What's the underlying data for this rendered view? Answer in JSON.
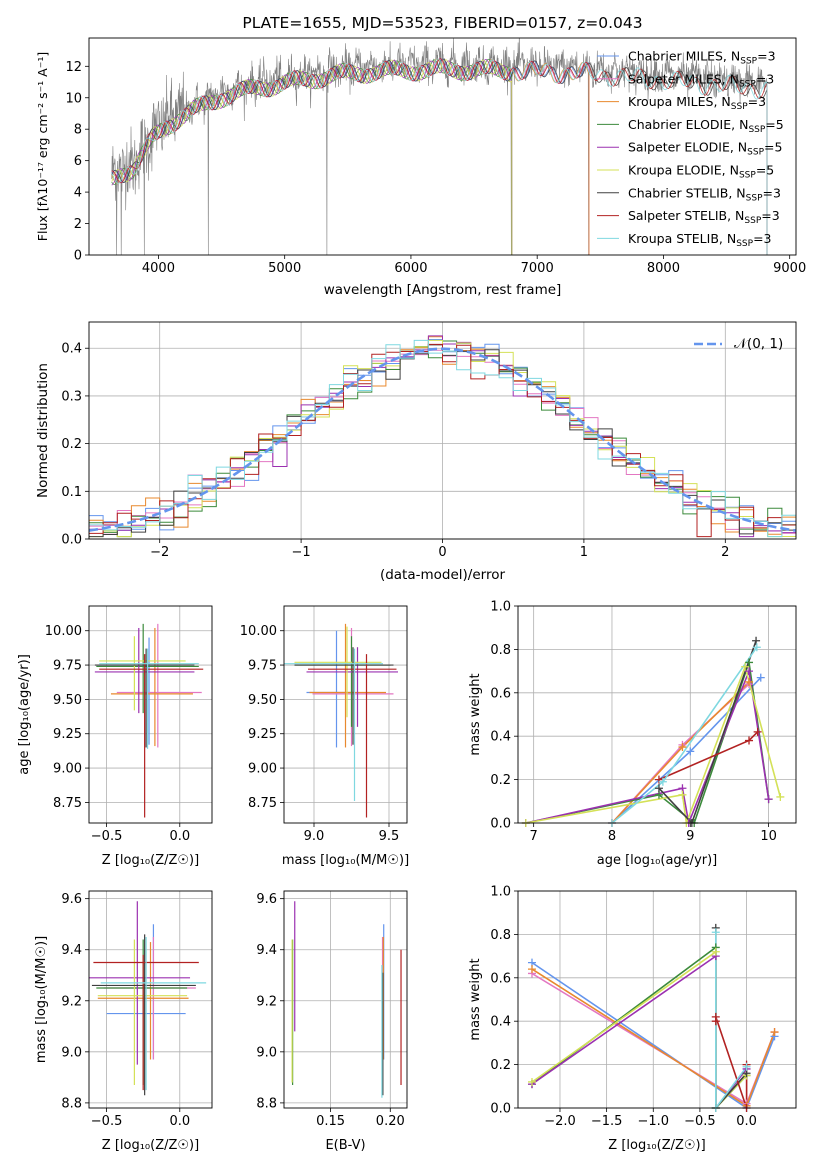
{
  "chart_data": [
    {
      "id": "spectrum",
      "type": "line",
      "title": "PLATE=1655, MJD=53523, FIBERID=0157, z=0.043",
      "xlabel": "wavelength [Angstrom, rest frame]",
      "ylabel": "Flux [fλ10⁻¹⁷ erg cm⁻² s⁻¹ A⁻¹]",
      "xlim": [
        3450,
        9050
      ],
      "ylim": [
        0,
        13.8
      ],
      "xticks": [
        4000,
        5000,
        6000,
        7000,
        8000,
        9000
      ],
      "yticks": [
        0,
        2,
        4,
        6,
        8,
        10,
        12
      ],
      "grid": false,
      "legend_position": "top-right",
      "legend": [
        "Chabrier MILES, N_SSP=3",
        "Salpeter MILES, N_SSP=3",
        "Kroupa MILES, N_SSP=3",
        "Chabrier ELODIE, N_SSP=5",
        "Salpeter ELODIE, N_SSP=5",
        "Kroupa ELODIE, N_SSP=5",
        "Chabrier STELIB, N_SSP=3",
        "Salpeter STELIB, N_SSP=3",
        "Kroupa STELIB, N_SSP=3"
      ],
      "data_color": "#808080",
      "data_x_range": [
        3630,
        8820
      ],
      "anchors": [
        [
          3630,
          5.2
        ],
        [
          3700,
          5.6
        ],
        [
          3800,
          5.8
        ],
        [
          3900,
          7.0
        ],
        [
          3950,
          7.7
        ],
        [
          4050,
          8.5
        ],
        [
          4150,
          9.0
        ],
        [
          4300,
          9.6
        ],
        [
          4500,
          10.4
        ],
        [
          4800,
          11.0
        ],
        [
          5100,
          11.4
        ],
        [
          5400,
          11.8
        ],
        [
          5700,
          12.0
        ],
        [
          6000,
          12.1
        ],
        [
          6300,
          12.15
        ],
        [
          6600,
          12.1
        ],
        [
          7000,
          12.0
        ],
        [
          7400,
          11.9
        ],
        [
          7800,
          11.6
        ],
        [
          8200,
          11.3
        ],
        [
          8500,
          11.1
        ],
        [
          8820,
          10.9
        ]
      ],
      "model_x_range": [
        3630,
        8820
      ],
      "model_x_ranges": [
        [
          3630,
          7410
        ],
        [
          3630,
          7410
        ],
        [
          3630,
          7410
        ],
        [
          3630,
          6800
        ],
        [
          3630,
          6800
        ],
        [
          3630,
          6800
        ],
        [
          3630,
          8820
        ],
        [
          3630,
          8820
        ],
        [
          3630,
          8820
        ]
      ],
      "spikes": [
        [
          3670,
          0
        ],
        [
          3705,
          0
        ],
        [
          3888,
          0
        ],
        [
          4395,
          0
        ],
        [
          5335,
          0
        ],
        [
          6795,
          0
        ],
        [
          7408,
          0
        ]
      ]
    },
    {
      "id": "residuals",
      "type": "histogram",
      "xlabel": "(data-model)/error",
      "ylabel": "Normed distribution",
      "xlim": [
        -2.5,
        2.5
      ],
      "ylim": [
        0,
        0.455
      ],
      "xticks": [
        -2,
        -1,
        0,
        1,
        2
      ],
      "yticks": [
        0.0,
        0.1,
        0.2,
        0.3,
        0.4
      ],
      "grid": true,
      "legend_position": "top-right",
      "legend": [
        "𝒩(0, 1)"
      ],
      "bin_width": 0.1,
      "reference": "normal(0,1)"
    },
    {
      "id": "age-vs-z",
      "type": "errorbar",
      "xlabel": "Z [log₁₀(Z/Z☉)]",
      "ylabel": "age  [log₁₀(age/yr)]",
      "xlim": [
        -0.62,
        0.22
      ],
      "ylim": [
        8.6,
        10.18
      ],
      "xticks": [
        -0.5,
        0.0
      ],
      "yticks": [
        8.75,
        9.0,
        9.25,
        9.5,
        9.75,
        10.0
      ],
      "grid": true,
      "points": [
        {
          "x": -0.21,
          "y": 9.75,
          "xerr": [
            0.36,
            0.2
          ],
          "yerr": [
            0.58,
            0.2
          ]
        },
        {
          "x": -0.15,
          "y": 9.55,
          "xerr": [
            0.28,
            0.3
          ],
          "yerr": [
            0.4,
            0.5
          ]
        },
        {
          "x": -0.17,
          "y": 9.54,
          "xerr": [
            0.3,
            0.26
          ],
          "yerr": [
            0.38,
            0.48
          ]
        },
        {
          "x": -0.25,
          "y": 9.74,
          "xerr": [
            0.32,
            0.38
          ],
          "yerr": [
            0.34,
            0.31
          ]
        },
        {
          "x": -0.28,
          "y": 9.7,
          "xerr": [
            0.3,
            0.38
          ],
          "yerr": [
            0.3,
            0.32
          ]
        },
        {
          "x": -0.31,
          "y": 9.78,
          "xerr": [
            0.24,
            0.35
          ],
          "yerr": [
            0.36,
            0.18
          ]
        },
        {
          "x": -0.23,
          "y": 9.75,
          "xerr": [
            0.35,
            0.33
          ],
          "yerr": [
            0.6,
            0.12
          ]
        },
        {
          "x": -0.24,
          "y": 9.72,
          "xerr": [
            0.31,
            0.4
          ],
          "yerr": [
            1.08,
            0.11
          ]
        },
        {
          "x": -0.22,
          "y": 9.76,
          "xerr": [
            0.33,
            0.35
          ],
          "yerr": [
            0.62,
            0.11
          ]
        }
      ]
    },
    {
      "id": "age-vs-mass",
      "type": "errorbar",
      "xlabel": "mass [log₁₀(M/M☉)]",
      "ylabel": "",
      "xlim": [
        8.8,
        9.62
      ],
      "ylim": [
        8.6,
        10.18
      ],
      "xticks": [
        9.0,
        9.5
      ],
      "yticks": [
        8.75,
        9.0,
        9.25,
        9.5,
        9.75,
        10.0
      ],
      "grid": true,
      "points": [
        {
          "x": 9.15,
          "y": 9.55,
          "xerr": [
            0.2,
            0.12
          ],
          "yerr": [
            0.4,
            0.45
          ]
        },
        {
          "x": 9.25,
          "y": 9.54,
          "xerr": [
            0.26,
            0.28
          ],
          "yerr": [
            0.38,
            0.48
          ]
        },
        {
          "x": 9.21,
          "y": 9.55,
          "xerr": [
            0.24,
            0.27
          ],
          "yerr": [
            0.4,
            0.5
          ]
        },
        {
          "x": 9.25,
          "y": 9.75,
          "xerr": [
            0.38,
            0.26
          ],
          "yerr": [
            0.45,
            0.21
          ]
        },
        {
          "x": 9.29,
          "y": 9.7,
          "xerr": [
            0.34,
            0.27
          ],
          "yerr": [
            0.4,
            0.18
          ]
        },
        {
          "x": 9.22,
          "y": 9.77,
          "xerr": [
            0.35,
            0.23
          ],
          "yerr": [
            0.4,
            0.26
          ]
        },
        {
          "x": 9.26,
          "y": 9.75,
          "xerr": [
            0.39,
            0.27
          ],
          "yerr": [
            0.58,
            0.13
          ]
        },
        {
          "x": 9.35,
          "y": 9.72,
          "xerr": [
            0.39,
            0.2
          ],
          "yerr": [
            1.08,
            0.11
          ]
        },
        {
          "x": 9.27,
          "y": 9.76,
          "xerr": [
            0.47,
            0.19
          ],
          "yerr": [
            1.0,
            0.11
          ]
        }
      ]
    },
    {
      "id": "massweight-vs-age",
      "type": "line",
      "xlabel": "age  [log₁₀(age/yr)]",
      "ylabel": "mass weight",
      "xlim": [
        6.8,
        10.35
      ],
      "ylim": [
        0.0,
        1.0
      ],
      "xticks": [
        7,
        8,
        9,
        10
      ],
      "yticks": [
        0.0,
        0.2,
        0.4,
        0.6,
        0.8,
        1.0
      ],
      "grid": true,
      "series": [
        {
          "x": [
            8.0,
            9.0,
            9.9
          ],
          "y": [
            0.0,
            0.33,
            0.67
          ]
        },
        {
          "x": [
            8.0,
            8.9,
            9.75
          ],
          "y": [
            0.0,
            0.36,
            0.64
          ]
        },
        {
          "x": [
            8.0,
            8.9,
            9.75
          ],
          "y": [
            0.0,
            0.35,
            0.65
          ]
        },
        {
          "x": [
            6.9,
            8.6,
            9.05,
            9.75,
            10.0
          ],
          "y": [
            0.0,
            0.13,
            0.0,
            0.74,
            0.11
          ]
        },
        {
          "x": [
            6.9,
            8.9,
            8.98,
            9.75,
            10.0
          ],
          "y": [
            0.0,
            0.16,
            0.0,
            0.7,
            0.11
          ]
        },
        {
          "x": [
            6.9,
            8.9,
            8.95,
            9.7,
            10.15
          ],
          "y": [
            0.0,
            0.13,
            0.0,
            0.72,
            0.12
          ]
        },
        {
          "x": [
            8.6,
            9.02,
            9.84
          ],
          "y": [
            0.16,
            0.0,
            0.84
          ]
        },
        {
          "x": [
            8.6,
            9.75,
            9.86
          ],
          "y": [
            0.2,
            0.38,
            0.42
          ]
        },
        {
          "x": [
            8.0,
            8.65,
            9.85
          ],
          "y": [
            0.0,
            0.19,
            0.81
          ]
        }
      ]
    },
    {
      "id": "mass-vs-z",
      "type": "errorbar",
      "xlabel": "Z [log₁₀(Z/Z☉)]",
      "ylabel": "mass [log₁₀(M/M☉)]",
      "xlim": [
        -0.62,
        0.22
      ],
      "ylim": [
        8.78,
        9.63
      ],
      "xticks": [
        -0.5,
        0.0
      ],
      "yticks": [
        8.8,
        9.0,
        9.2,
        9.4,
        9.6
      ],
      "grid": true,
      "points": [
        {
          "x": -0.18,
          "y": 9.15,
          "xerr": [
            0.32,
            0.22
          ],
          "yerr": [
            0.18,
            0.35
          ]
        },
        {
          "x": -0.18,
          "y": 9.25,
          "xerr": [
            0.34,
            0.29
          ],
          "yerr": [
            0.28,
            0.2
          ]
        },
        {
          "x": -0.2,
          "y": 9.21,
          "xerr": [
            0.36,
            0.26
          ],
          "yerr": [
            0.24,
            0.22
          ]
        },
        {
          "x": -0.25,
          "y": 9.25,
          "xerr": [
            0.32,
            0.3
          ],
          "yerr": [
            0.38,
            0.19
          ]
        },
        {
          "x": -0.29,
          "y": 9.29,
          "xerr": [
            0.34,
            0.36
          ],
          "yerr": [
            0.34,
            0.3
          ]
        },
        {
          "x": -0.31,
          "y": 9.22,
          "xerr": [
            0.25,
            0.36
          ],
          "yerr": [
            0.35,
            0.22
          ]
        },
        {
          "x": -0.24,
          "y": 9.26,
          "xerr": [
            0.36,
            0.35
          ],
          "yerr": [
            0.43,
            0.2
          ]
        },
        {
          "x": -0.25,
          "y": 9.35,
          "xerr": [
            0.34,
            0.38
          ],
          "yerr": [
            0.5,
            0.03
          ]
        },
        {
          "x": -0.23,
          "y": 9.27,
          "xerr": [
            0.31,
            0.41
          ],
          "yerr": [
            0.42,
            0.18
          ]
        }
      ]
    },
    {
      "id": "mass-vs-ebv",
      "type": "errorbar",
      "xlabel": "E(B-V)",
      "ylabel": "",
      "xlim": [
        0.111,
        0.214
      ],
      "ylim": [
        8.78,
        9.63
      ],
      "xticks": [
        0.15,
        0.2
      ],
      "yticks": [
        8.8,
        9.0,
        9.2,
        9.4,
        9.6
      ],
      "grid": true,
      "points": [
        {
          "x": 0.1945,
          "y": 9.15,
          "xerr": [
            0,
            0
          ],
          "yerr": [
            0.18,
            0.35
          ]
        },
        {
          "x": 0.1935,
          "y": 9.25,
          "xerr": [
            0,
            0
          ],
          "yerr": [
            0.28,
            0.2
          ]
        },
        {
          "x": 0.1942,
          "y": 9.21,
          "xerr": [
            0,
            0
          ],
          "yerr": [
            0.24,
            0.24
          ]
        },
        {
          "x": 0.1182,
          "y": 9.25,
          "xerr": [
            0,
            0
          ],
          "yerr": [
            0.38,
            0.19
          ]
        },
        {
          "x": 0.12,
          "y": 9.29,
          "xerr": [
            0,
            0
          ],
          "yerr": [
            0.21,
            0.3
          ]
        },
        {
          "x": 0.1178,
          "y": 9.22,
          "xerr": [
            0,
            0
          ],
          "yerr": [
            0.34,
            0.22
          ]
        },
        {
          "x": 0.1938,
          "y": 9.26,
          "xerr": [
            0,
            0
          ],
          "yerr": [
            0.43,
            0.05
          ]
        },
        {
          "x": 0.209,
          "y": 9.35,
          "xerr": [
            0,
            0
          ],
          "yerr": [
            0.48,
            0.05
          ]
        },
        {
          "x": 0.193,
          "y": 9.27,
          "xerr": [
            0,
            0
          ],
          "yerr": [
            0.45,
            0.07
          ]
        }
      ]
    },
    {
      "id": "massweight-vs-z",
      "type": "line",
      "xlabel": "Z [log₁₀(Z/Z☉)]",
      "ylabel": "mass weight",
      "xlim": [
        -2.45,
        0.53
      ],
      "ylim": [
        0.0,
        1.0
      ],
      "xticks": [
        -2.0,
        -1.5,
        -1.0,
        -0.5,
        0.0
      ],
      "yticks": [
        0.0,
        0.2,
        0.4,
        0.6,
        0.8,
        1.0
      ],
      "grid": true,
      "series": [
        {
          "x": [
            -2.3,
            0.0,
            0.3
          ],
          "y": [
            0.67,
            0.0,
            0.33
          ]
        },
        {
          "x": [
            -2.3,
            0.0,
            0.3
          ],
          "y": [
            0.62,
            0.02,
            0.35
          ]
        },
        {
          "x": [
            -2.3,
            0.0,
            0.3
          ],
          "y": [
            0.64,
            0.01,
            0.35
          ]
        },
        {
          "x": [
            -2.3,
            -0.33,
            -0.33,
            0.0
          ],
          "y": [
            0.11,
            0.74,
            0.0,
            0.15
          ]
        },
        {
          "x": [
            -2.3,
            -0.33,
            -0.33,
            0.0
          ],
          "y": [
            0.11,
            0.7,
            0.0,
            0.18
          ]
        },
        {
          "x": [
            -2.3,
            -0.33,
            -0.33,
            0.0
          ],
          "y": [
            0.12,
            0.72,
            0.0,
            0.15
          ]
        },
        {
          "x": [
            -0.33,
            -0.33,
            0.0
          ],
          "y": [
            0.83,
            0.0,
            0.16
          ]
        },
        {
          "x": [
            -0.33,
            -0.33,
            0.0,
            0.0
          ],
          "y": [
            0.4,
            0.42,
            0.0,
            0.2
          ]
        },
        {
          "x": [
            -0.33,
            -0.33,
            0.0
          ],
          "y": [
            0.81,
            0.0,
            0.19
          ]
        }
      ]
    }
  ],
  "colors": [
    "#6495ed",
    "#e377c2",
    "#e8892e",
    "#3b8a3b",
    "#9b30b0",
    "#d4e157",
    "#404040",
    "#b22222",
    "#7fd8e0"
  ]
}
